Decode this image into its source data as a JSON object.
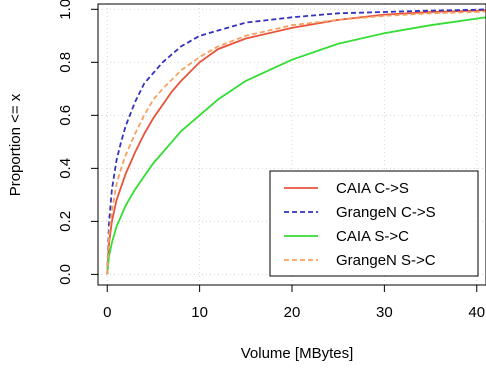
{
  "chart_data": {
    "type": "line",
    "title": "",
    "xlabel": "Volume [MBytes]",
    "ylabel": "Proportion <= x",
    "xlim": [
      -1,
      41
    ],
    "ylim": [
      -0.04,
      1.02
    ],
    "xticks": [
      0,
      10,
      20,
      30,
      40
    ],
    "xtick_labels": [
      "0",
      "10",
      "20",
      "30",
      "40"
    ],
    "yticks": [
      0.0,
      0.2,
      0.4,
      0.6,
      0.8,
      1.0
    ],
    "ytick_labels": [
      "0.0",
      "0.2",
      "0.4",
      "0.6",
      "0.8",
      "1.0"
    ],
    "grid": true,
    "legend_position": "bottom-right",
    "series": [
      {
        "name": "CAIA C->S",
        "color": "#e8533a",
        "dash": "solid",
        "x": [
          0,
          0.2,
          0.5,
          1,
          1.5,
          2,
          3,
          4,
          5,
          6,
          7,
          8,
          10,
          12,
          15,
          20,
          25,
          30,
          35,
          40,
          41
        ],
        "y": [
          0,
          0.12,
          0.2,
          0.28,
          0.33,
          0.38,
          0.46,
          0.53,
          0.59,
          0.64,
          0.69,
          0.73,
          0.8,
          0.85,
          0.89,
          0.93,
          0.96,
          0.98,
          0.99,
          0.995,
          0.997
        ]
      },
      {
        "name": "GrangeN C->S",
        "color": "#3333bb",
        "dash": "dashed",
        "x": [
          0,
          0.2,
          0.5,
          1,
          1.5,
          2,
          3,
          4,
          5,
          6,
          8,
          10,
          12,
          15,
          20,
          25,
          30,
          35,
          40,
          41
        ],
        "y": [
          0,
          0.2,
          0.32,
          0.43,
          0.5,
          0.56,
          0.65,
          0.72,
          0.76,
          0.8,
          0.86,
          0.9,
          0.92,
          0.95,
          0.97,
          0.985,
          0.99,
          0.995,
          0.998,
          1.0
        ]
      },
      {
        "name": "CAIA S->C",
        "color": "#33dd33",
        "dash": "solid",
        "x": [
          0,
          0.2,
          0.5,
          1,
          1.5,
          2,
          3,
          4,
          5,
          6,
          7,
          8,
          10,
          12,
          15,
          20,
          25,
          30,
          35,
          40,
          41
        ],
        "y": [
          0,
          0.07,
          0.12,
          0.18,
          0.22,
          0.26,
          0.32,
          0.37,
          0.42,
          0.46,
          0.5,
          0.54,
          0.6,
          0.66,
          0.73,
          0.81,
          0.87,
          0.91,
          0.94,
          0.965,
          0.97
        ]
      },
      {
        "name": "GrangeN S->C",
        "color": "#f7a060",
        "dash": "dashed",
        "x": [
          0,
          0.2,
          0.5,
          1,
          1.5,
          2,
          3,
          4,
          5,
          6,
          8,
          10,
          12,
          15,
          20,
          25,
          30,
          35,
          40,
          41
        ],
        "y": [
          0,
          0.15,
          0.24,
          0.34,
          0.4,
          0.45,
          0.53,
          0.6,
          0.66,
          0.7,
          0.77,
          0.82,
          0.86,
          0.9,
          0.94,
          0.96,
          0.975,
          0.985,
          0.99,
          0.992
        ]
      }
    ]
  }
}
